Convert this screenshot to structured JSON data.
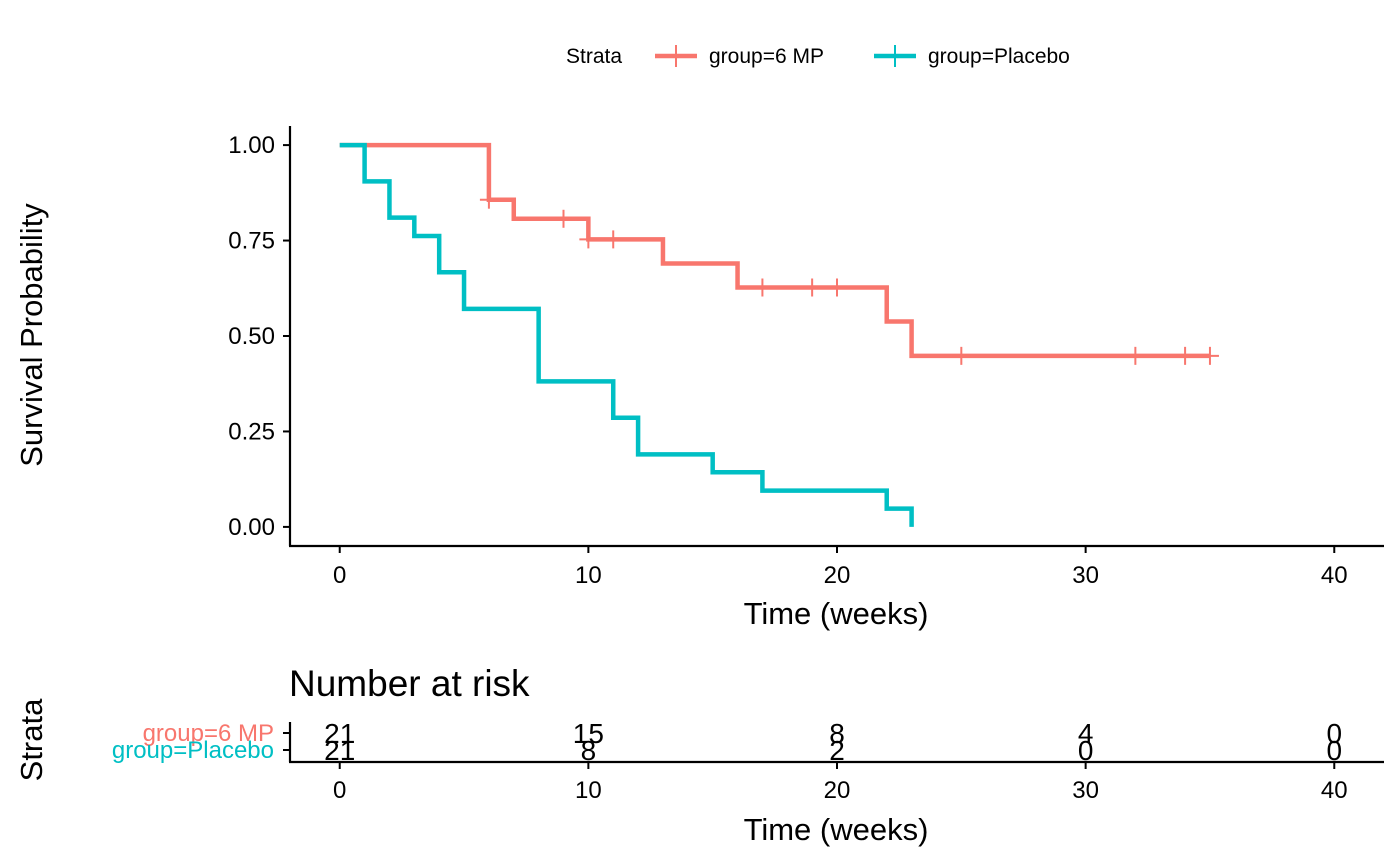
{
  "chart_data": [
    {
      "type": "line",
      "subtype": "kaplan-meier step curve with censoring marks",
      "xlabel": "Time (weeks)",
      "ylabel": "Survival Probability",
      "xlim": [
        -2,
        42
      ],
      "ylim": [
        -0.05,
        1.05
      ],
      "x_ticks": [
        0,
        10,
        20,
        30,
        40
      ],
      "x_tick_labels": [
        "0",
        "10",
        "20",
        "30",
        "40"
      ],
      "y_ticks": [
        0,
        0.25,
        0.5,
        0.75,
        1
      ],
      "y_tick_labels": [
        "0.00",
        "0.25",
        "0.50",
        "0.75",
        "1.00"
      ],
      "grid": false,
      "legend": {
        "position": "top",
        "title": "Strata",
        "entries": [
          "group=6 MP",
          "group=Placebo"
        ]
      },
      "series": [
        {
          "name": "group=6 MP",
          "color": "#F8766D",
          "steps": [
            {
              "time": 0,
              "survival": 1.0
            },
            {
              "time": 6,
              "survival": 0.857
            },
            {
              "time": 7,
              "survival": 0.807
            },
            {
              "time": 10,
              "survival": 0.753
            },
            {
              "time": 13,
              "survival": 0.69
            },
            {
              "time": 16,
              "survival": 0.627
            },
            {
              "time": 22,
              "survival": 0.538
            },
            {
              "time": 23,
              "survival": 0.448
            }
          ],
          "end_time": 35,
          "censored": [
            {
              "time": 6,
              "survival": 0.857
            },
            {
              "time": 9,
              "survival": 0.807
            },
            {
              "time": 10,
              "survival": 0.753
            },
            {
              "time": 11,
              "survival": 0.753
            },
            {
              "time": 17,
              "survival": 0.627
            },
            {
              "time": 19,
              "survival": 0.627
            },
            {
              "time": 20,
              "survival": 0.627
            },
            {
              "time": 25,
              "survival": 0.448
            },
            {
              "time": 32,
              "survival": 0.448
            },
            {
              "time": 34,
              "survival": 0.448
            },
            {
              "time": 35,
              "survival": 0.448
            }
          ]
        },
        {
          "name": "group=Placebo",
          "color": "#00BFC4",
          "steps": [
            {
              "time": 0,
              "survival": 1.0
            },
            {
              "time": 1,
              "survival": 0.905
            },
            {
              "time": 2,
              "survival": 0.81
            },
            {
              "time": 3,
              "survival": 0.762
            },
            {
              "time": 4,
              "survival": 0.667
            },
            {
              "time": 5,
              "survival": 0.571
            },
            {
              "time": 8,
              "survival": 0.381
            },
            {
              "time": 11,
              "survival": 0.286
            },
            {
              "time": 12,
              "survival": 0.19
            },
            {
              "time": 15,
              "survival": 0.143
            },
            {
              "time": 17,
              "survival": 0.095
            },
            {
              "time": 22,
              "survival": 0.048
            },
            {
              "time": 23,
              "survival": 0.0
            }
          ],
          "end_time": 23,
          "censored": []
        }
      ]
    },
    {
      "type": "table",
      "title": "Number at risk",
      "ylabel": "Strata",
      "xlabel": "Time (weeks)",
      "xlim": [
        -2,
        42
      ],
      "x_ticks": [
        0,
        10,
        20,
        30,
        40
      ],
      "x_tick_labels": [
        "0",
        "10",
        "20",
        "30",
        "40"
      ],
      "rows": [
        {
          "name": "group=6 MP",
          "color": "#F8766D",
          "values": [
            "21",
            "15",
            "8",
            "4",
            "0"
          ]
        },
        {
          "name": "group=Placebo",
          "color": "#00BFC4",
          "values": [
            "21",
            "8",
            "2",
            "0",
            "0"
          ]
        }
      ]
    }
  ]
}
